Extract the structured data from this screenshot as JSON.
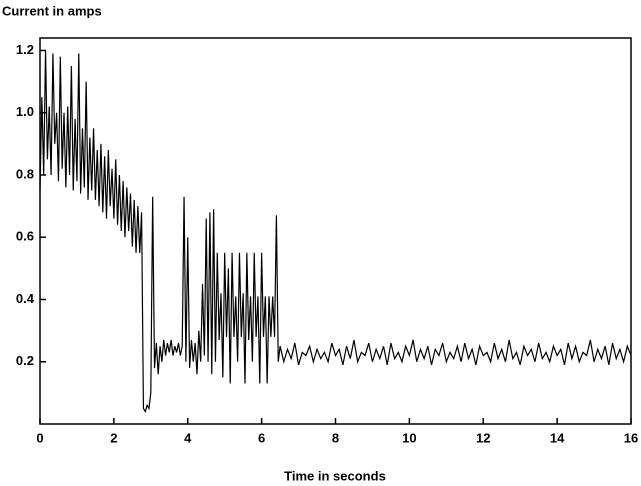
{
  "chart_data": {
    "type": "line",
    "ylabel": "Current in amps",
    "xlabel": "Time in seconds",
    "color": "#000000",
    "xlim": [
      0,
      16
    ],
    "xticks": [
      0,
      2,
      4,
      6,
      8,
      10,
      12,
      14,
      16
    ],
    "ylim": [
      0,
      1.24
    ],
    "yticks": [
      0.2,
      0.4,
      0.6,
      0.8,
      1.0,
      1.2
    ],
    "x": [
      0,
      0.05,
      0.1,
      0.15,
      0.2,
      0.25,
      0.3,
      0.35,
      0.4,
      0.45,
      0.5,
      0.55,
      0.6,
      0.65,
      0.7,
      0.75,
      0.8,
      0.85,
      0.9,
      0.95,
      1.0,
      1.05,
      1.1,
      1.15,
      1.2,
      1.25,
      1.3,
      1.35,
      1.4,
      1.45,
      1.5,
      1.55,
      1.6,
      1.65,
      1.7,
      1.75,
      1.8,
      1.85,
      1.9,
      1.95,
      2.0,
      2.05,
      2.1,
      2.15,
      2.2,
      2.25,
      2.3,
      2.35,
      2.4,
      2.45,
      2.5,
      2.55,
      2.6,
      2.65,
      2.7,
      2.75,
      2.8,
      2.85,
      2.9,
      2.95,
      3.0,
      3.05,
      3.1,
      3.15,
      3.2,
      3.25,
      3.3,
      3.35,
      3.4,
      3.45,
      3.5,
      3.55,
      3.6,
      3.65,
      3.7,
      3.75,
      3.8,
      3.85,
      3.9,
      3.95,
      4.0,
      4.05,
      4.1,
      4.15,
      4.2,
      4.25,
      4.3,
      4.35,
      4.4,
      4.45,
      4.5,
      4.55,
      4.6,
      4.65,
      4.7,
      4.75,
      4.8,
      4.85,
      4.9,
      4.95,
      5.0,
      5.05,
      5.1,
      5.15,
      5.2,
      5.25,
      5.3,
      5.35,
      5.4,
      5.45,
      5.5,
      5.55,
      5.6,
      5.65,
      5.7,
      5.75,
      5.8,
      5.85,
      5.9,
      5.95,
      6.0,
      6.05,
      6.1,
      6.15,
      6.2,
      6.25,
      6.3,
      6.35,
      6.4,
      6.45,
      6.5,
      6.6,
      6.7,
      6.8,
      6.9,
      7.0,
      7.1,
      7.2,
      7.3,
      7.4,
      7.5,
      7.6,
      7.7,
      7.8,
      7.9,
      8.0,
      8.1,
      8.2,
      8.3,
      8.4,
      8.5,
      8.6,
      8.7,
      8.8,
      8.9,
      9.0,
      9.1,
      9.2,
      9.3,
      9.4,
      9.5,
      9.6,
      9.7,
      9.8,
      9.9,
      10.0,
      10.1,
      10.2,
      10.3,
      10.4,
      10.5,
      10.6,
      10.7,
      10.8,
      10.9,
      11.0,
      11.1,
      11.2,
      11.3,
      11.4,
      11.5,
      11.6,
      11.7,
      11.8,
      11.9,
      12.0,
      12.1,
      12.2,
      12.3,
      12.4,
      12.5,
      12.6,
      12.7,
      12.8,
      12.9,
      13.0,
      13.1,
      13.2,
      13.3,
      13.4,
      13.5,
      13.6,
      13.7,
      13.8,
      13.9,
      14.0,
      14.1,
      14.2,
      14.3,
      14.4,
      14.5,
      14.6,
      14.7,
      14.8,
      14.9,
      15.0,
      15.1,
      15.2,
      15.3,
      15.4,
      15.5,
      15.6,
      15.7,
      15.8,
      15.9,
      16.0
    ],
    "values": [
      0.75,
      1.05,
      0.8,
      1.2,
      0.85,
      1.02,
      0.8,
      1.19,
      0.9,
      1.0,
      0.78,
      1.18,
      0.82,
      1.0,
      0.76,
      1.02,
      0.8,
      1.15,
      0.75,
      0.98,
      0.78,
      1.19,
      0.74,
      0.95,
      0.76,
      1.1,
      0.72,
      0.92,
      0.75,
      0.95,
      0.72,
      0.88,
      0.7,
      0.9,
      0.68,
      0.86,
      0.66,
      0.88,
      0.7,
      0.82,
      0.66,
      0.85,
      0.64,
      0.8,
      0.62,
      0.78,
      0.6,
      0.76,
      0.62,
      0.74,
      0.57,
      0.72,
      0.55,
      0.7,
      0.55,
      0.68,
      0.05,
      0.04,
      0.06,
      0.05,
      0.1,
      0.73,
      0.18,
      0.26,
      0.16,
      0.25,
      0.2,
      0.27,
      0.22,
      0.26,
      0.23,
      0.27,
      0.22,
      0.25,
      0.23,
      0.26,
      0.22,
      0.25,
      0.73,
      0.2,
      0.6,
      0.18,
      0.27,
      0.2,
      0.26,
      0.16,
      0.3,
      0.2,
      0.45,
      0.22,
      0.66,
      0.2,
      0.68,
      0.16,
      0.69,
      0.2,
      0.55,
      0.27,
      0.42,
      0.15,
      0.55,
      0.28,
      0.5,
      0.13,
      0.55,
      0.28,
      0.41,
      0.2,
      0.55,
      0.28,
      0.42,
      0.13,
      0.55,
      0.27,
      0.41,
      0.2,
      0.55,
      0.28,
      0.41,
      0.13,
      0.55,
      0.28,
      0.41,
      0.13,
      0.41,
      0.28,
      0.41,
      0.28,
      0.67,
      0.2,
      0.25,
      0.2,
      0.24,
      0.21,
      0.26,
      0.19,
      0.23,
      0.22,
      0.25,
      0.2,
      0.24,
      0.21,
      0.23,
      0.2,
      0.26,
      0.22,
      0.24,
      0.19,
      0.25,
      0.21,
      0.27,
      0.2,
      0.23,
      0.22,
      0.26,
      0.2,
      0.24,
      0.21,
      0.25,
      0.19,
      0.26,
      0.21,
      0.23,
      0.2,
      0.25,
      0.22,
      0.27,
      0.2,
      0.24,
      0.21,
      0.25,
      0.19,
      0.24,
      0.22,
      0.26,
      0.2,
      0.23,
      0.21,
      0.25,
      0.2,
      0.26,
      0.21,
      0.24,
      0.19,
      0.25,
      0.22,
      0.23,
      0.2,
      0.26,
      0.21,
      0.24,
      0.2,
      0.27,
      0.21,
      0.23,
      0.19,
      0.25,
      0.22,
      0.24,
      0.2,
      0.26,
      0.21,
      0.23,
      0.2,
      0.25,
      0.22,
      0.24,
      0.19,
      0.26,
      0.21,
      0.25,
      0.2,
      0.23,
      0.22,
      0.27,
      0.2,
      0.24,
      0.21,
      0.25,
      0.19,
      0.26,
      0.21,
      0.24,
      0.2,
      0.25,
      0.22
    ]
  }
}
